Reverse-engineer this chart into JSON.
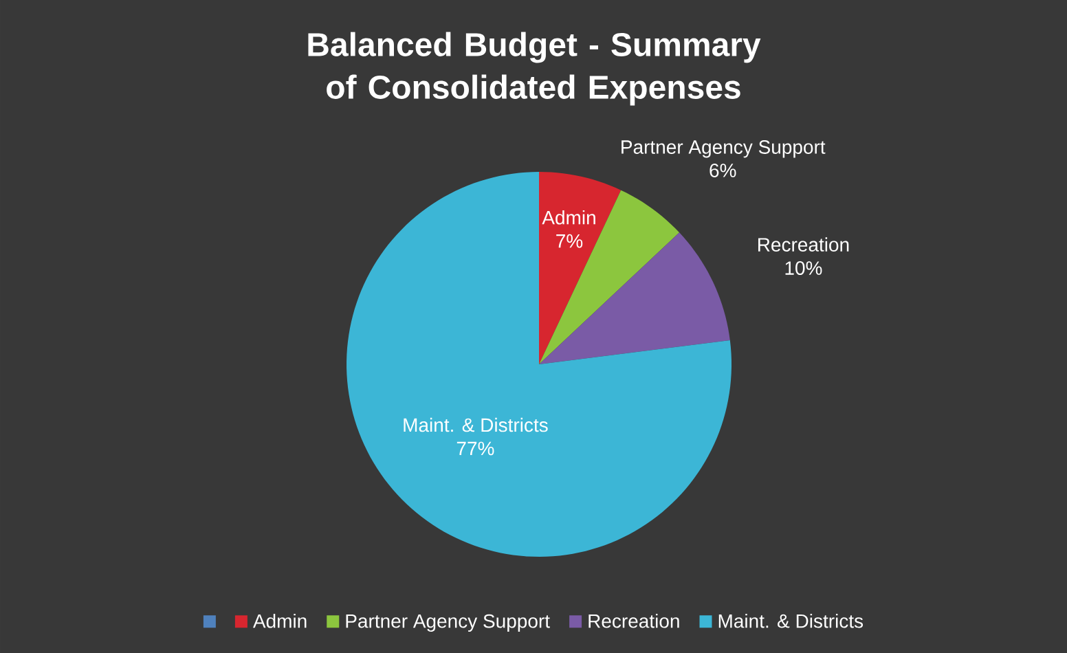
{
  "chart_data": {
    "type": "pie",
    "title": "Balanced Budget - Summary of Consolidated Expenses",
    "categories": [
      null,
      "Admin",
      "Partner Agency Support",
      "Recreation",
      "Maint. & Districts"
    ],
    "values": [
      0,
      7,
      6,
      10,
      77
    ],
    "value_labels": [
      null,
      "7%",
      "6%",
      "10%",
      "77%"
    ],
    "colors": [
      "#4f81bd",
      "#d7262f",
      "#8cc63e",
      "#7a5ba6",
      "#3cb6d6"
    ],
    "legend": "bottom"
  }
}
